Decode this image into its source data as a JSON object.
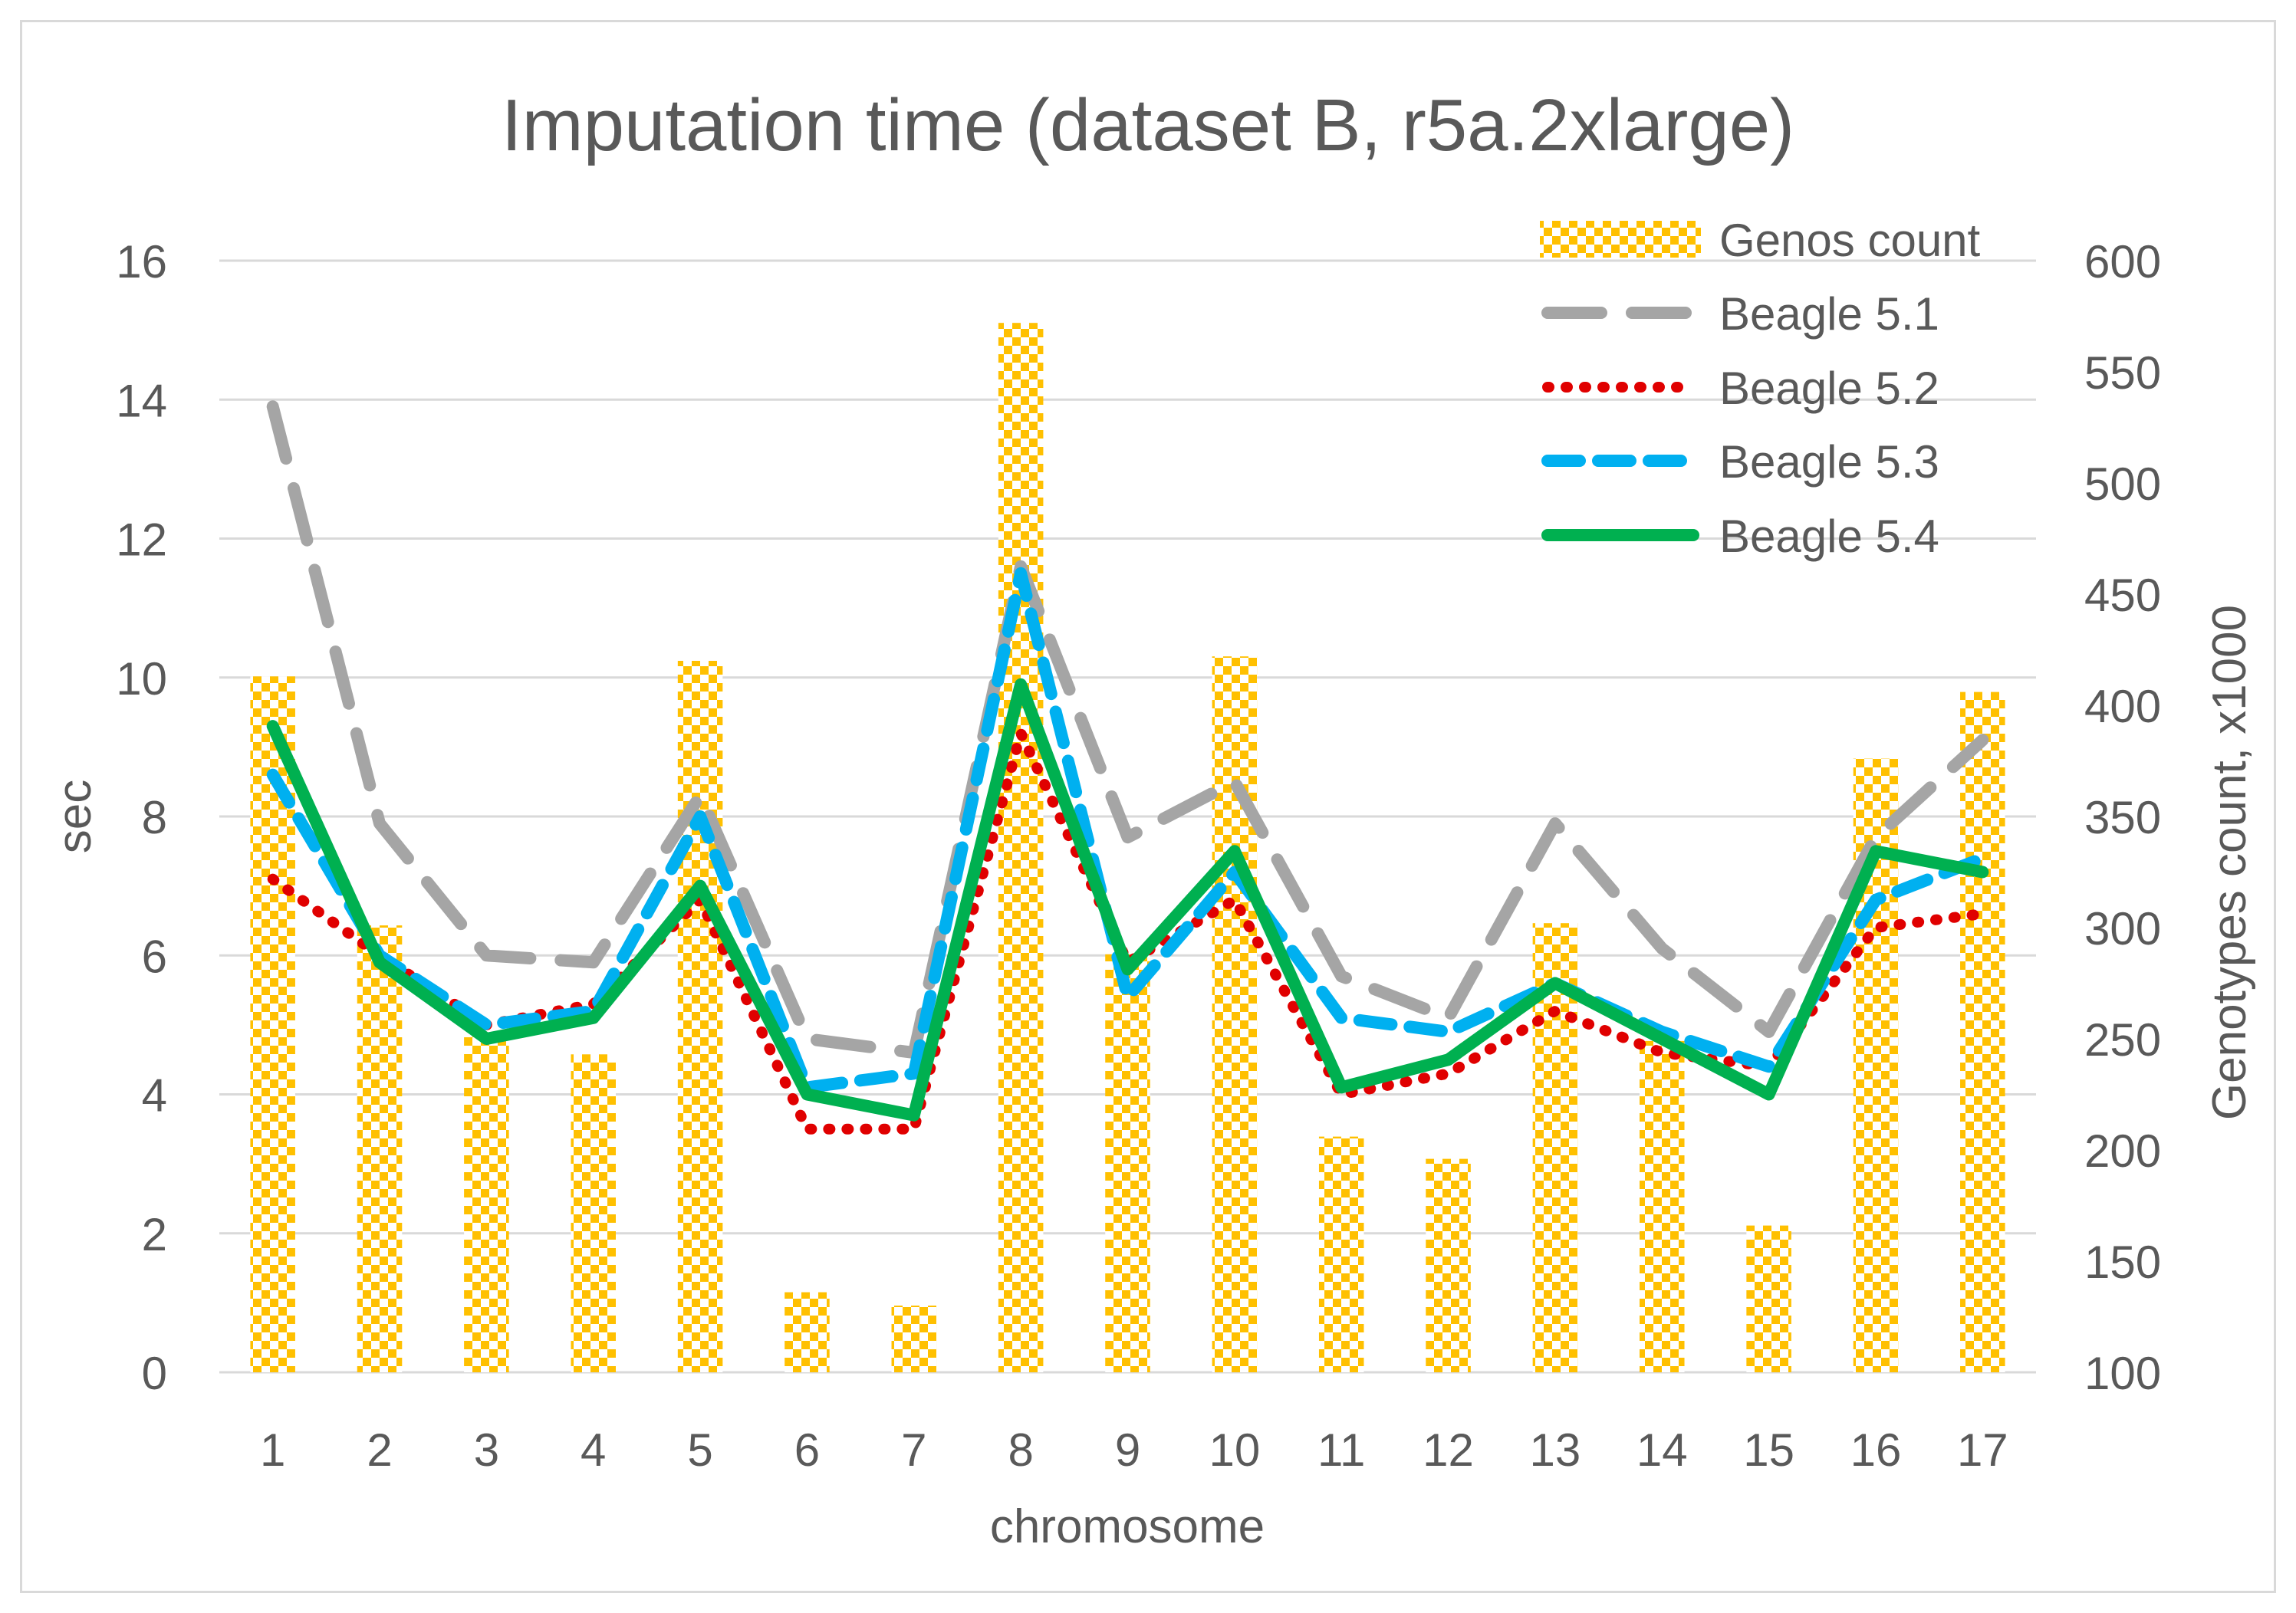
{
  "chart_data": {
    "type": "bar+line",
    "title": "Imputation time (dataset B, r5a.2xlarge)",
    "xlabel": "chromosome",
    "ylabel": "sec",
    "y2label": "Genotypes count, x1000",
    "categories": [
      "1",
      "2",
      "3",
      "4",
      "5",
      "6",
      "7",
      "8",
      "9",
      "10",
      "11",
      "12",
      "13",
      "14",
      "15",
      "16",
      "17"
    ],
    "ylim": [
      0,
      16
    ],
    "yticks": [
      "0",
      "2",
      "4",
      "6",
      "8",
      "10",
      "12",
      "14",
      "16"
    ],
    "y2lim": [
      100,
      600
    ],
    "y2ticks": [
      "100",
      "150",
      "200",
      "250",
      "300",
      "350",
      "400",
      "450",
      "500",
      "550",
      "600"
    ],
    "legend_position": "top-right",
    "grid": true,
    "bars": {
      "name": "Genos count",
      "axis": "secondary",
      "color": "#ffc000",
      "values": [
        413,
        301,
        252,
        243,
        420,
        136,
        130,
        572,
        288,
        422,
        206,
        196,
        302,
        249,
        166,
        376,
        406
      ]
    },
    "series": [
      {
        "name": "Beagle 5.1",
        "color": "#a5a5a5",
        "style": "long-dash",
        "values": [
          13.9,
          7.9,
          6.0,
          5.9,
          8.3,
          4.8,
          4.6,
          11.6,
          7.7,
          8.5,
          5.7,
          5.1,
          7.9,
          6.1,
          4.9,
          7.7,
          9.1
        ]
      },
      {
        "name": "Beagle 5.2",
        "color": "#e00000",
        "style": "dotted",
        "values": [
          7.1,
          6.0,
          5.0,
          5.3,
          6.8,
          3.5,
          3.5,
          9.2,
          5.9,
          6.8,
          4.0,
          4.3,
          5.2,
          4.6,
          4.4,
          6.4,
          6.6
        ]
      },
      {
        "name": "Beagle 5.3",
        "color": "#00b0f0",
        "style": "dash",
        "values": [
          8.6,
          6.0,
          5.0,
          5.2,
          8.0,
          4.1,
          4.3,
          11.5,
          5.4,
          7.2,
          5.1,
          4.9,
          5.6,
          4.9,
          4.4,
          6.8,
          7.4
        ]
      },
      {
        "name": "Beagle 5.4",
        "color": "#00b050",
        "style": "solid",
        "values": [
          9.3,
          5.9,
          4.8,
          5.1,
          7.0,
          4.0,
          3.7,
          9.9,
          5.8,
          7.5,
          4.1,
          4.5,
          5.6,
          4.8,
          4.0,
          7.5,
          7.2
        ]
      }
    ]
  }
}
